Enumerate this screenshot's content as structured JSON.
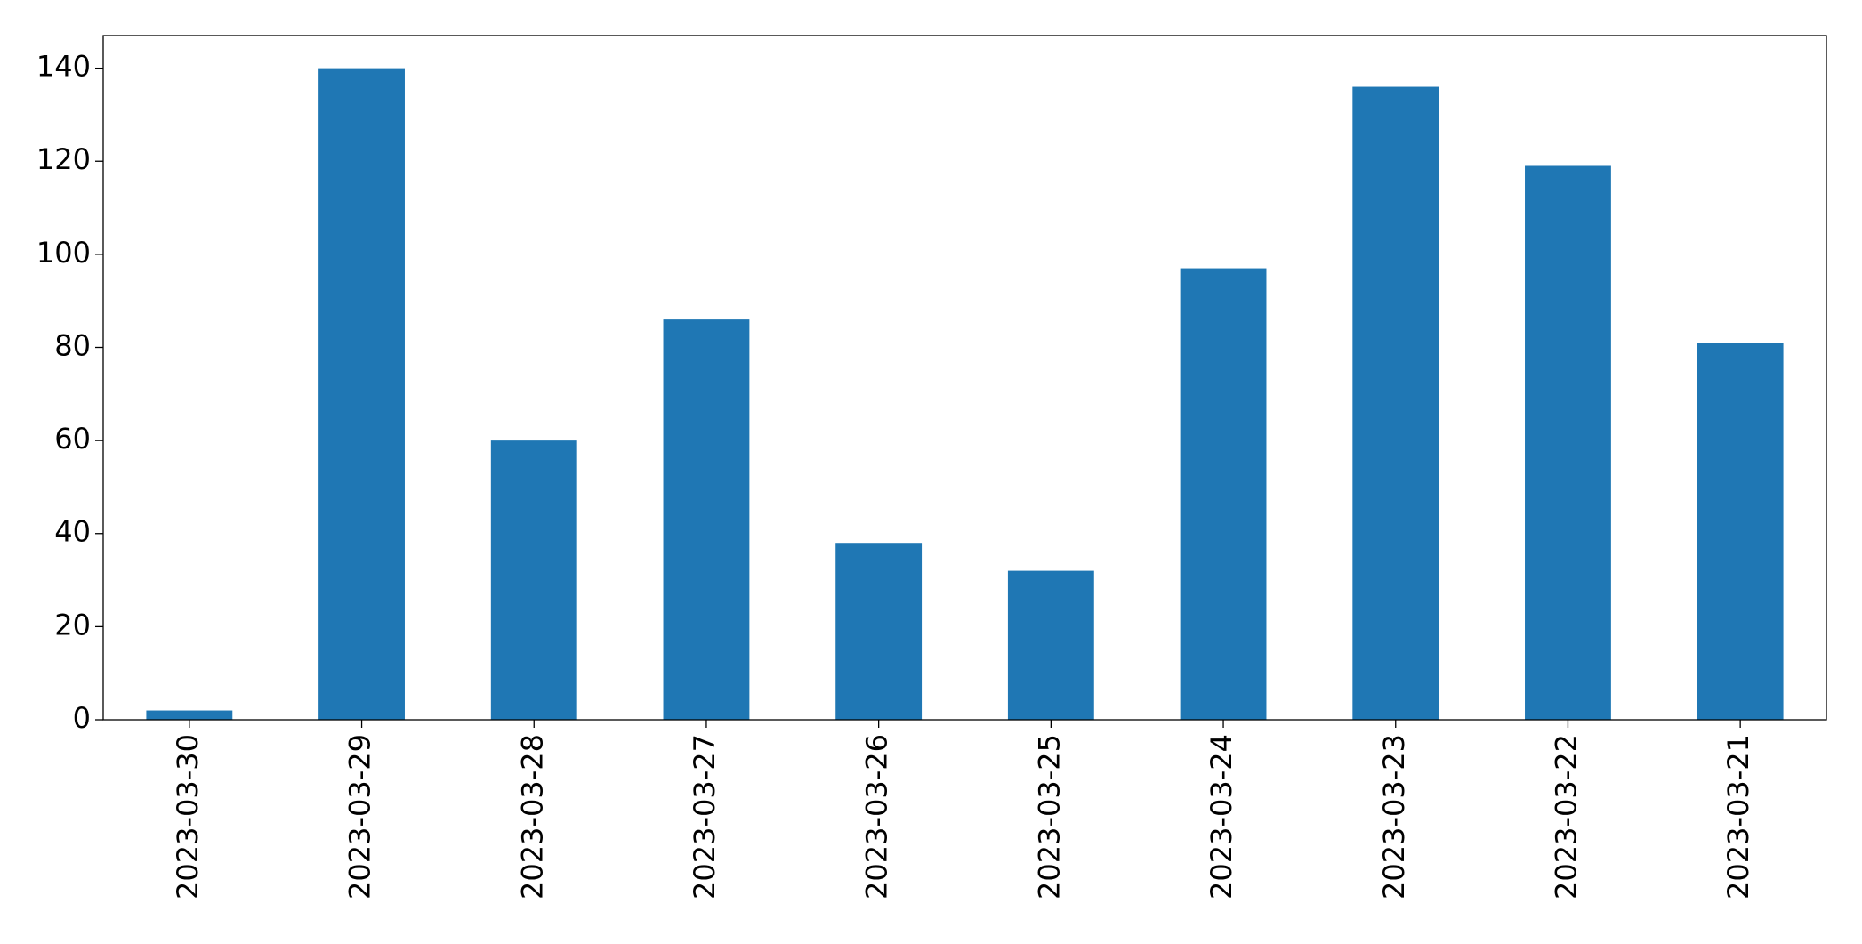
{
  "chart_data": {
    "type": "bar",
    "categories": [
      "2023-03-30",
      "2023-03-29",
      "2023-03-28",
      "2023-03-27",
      "2023-03-26",
      "2023-03-25",
      "2023-03-24",
      "2023-03-23",
      "2023-03-22",
      "2023-03-21"
    ],
    "values": [
      2,
      140,
      60,
      86,
      38,
      32,
      97,
      136,
      119,
      81
    ],
    "color": "#1f77b4",
    "ylim": [
      0,
      147
    ],
    "yticks": [
      0,
      20,
      40,
      60,
      80,
      100,
      120,
      140
    ],
    "grid": false
  }
}
